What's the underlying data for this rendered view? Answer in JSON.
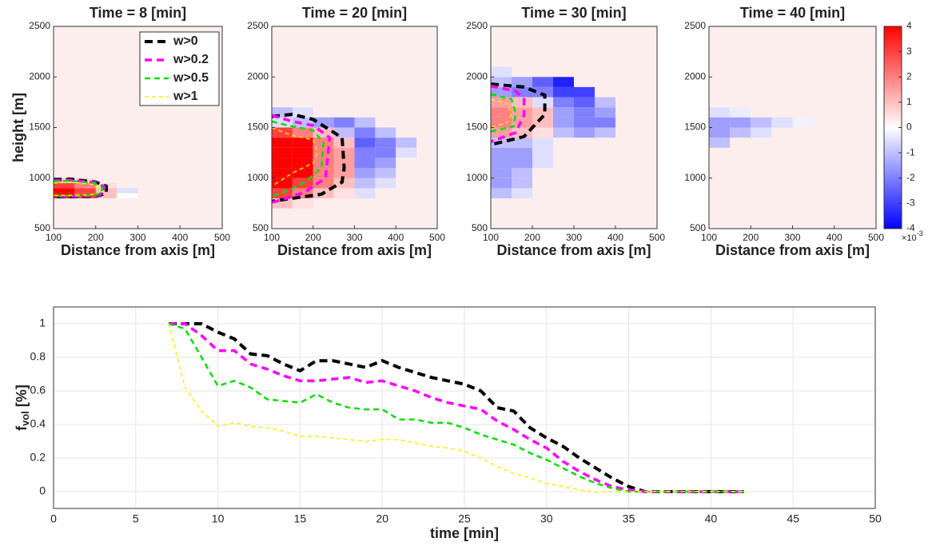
{
  "chart_data": [
    {
      "type": "heatmap",
      "title": "Time = 8 [min]",
      "xlabel": "Distance from axis [m]",
      "ylabel": "height [m]",
      "xlim": [
        100,
        500
      ],
      "xticks": [
        100,
        200,
        300,
        400,
        500
      ],
      "ylim": [
        500,
        2500
      ],
      "yticks": [
        500,
        1000,
        1500,
        2000,
        2500
      ],
      "legend": "upper right",
      "series": [
        {
          "name": "w>0",
          "color": "#000000"
        },
        {
          "name": "w>0.2",
          "color": "#ff00ff"
        },
        {
          "name": "w>0.5",
          "color": "#00e000"
        },
        {
          "name": "w>1",
          "color": "#ffee00"
        }
      ],
      "x_bins": [
        100,
        150,
        200,
        250,
        300
      ],
      "y_bins": [
        800,
        850,
        900,
        950,
        1000
      ],
      "z": [
        [
          4,
          3,
          1,
          0
        ],
        [
          4,
          3,
          1,
          -0.5
        ],
        [
          3,
          2,
          0.5,
          null
        ],
        [
          1,
          0.5,
          null,
          null
        ]
      ],
      "contours": [
        {
          "x": [
            100,
            140,
            200,
            225,
            225,
            200,
            140,
            100
          ],
          "y": [
            985,
            990,
            960,
            920,
            850,
            820,
            815,
            815
          ]
        },
        {
          "x": [
            100,
            140,
            200,
            220,
            220,
            200,
            140,
            100
          ],
          "y": [
            975,
            980,
            955,
            915,
            855,
            825,
            820,
            820
          ]
        },
        {
          "x": [
            100,
            140,
            195,
            215,
            215,
            195,
            140,
            100
          ],
          "y": [
            965,
            975,
            950,
            910,
            860,
            830,
            825,
            825
          ]
        },
        {
          "x": [
            100,
            140,
            190,
            210,
            210,
            190,
            140,
            100
          ],
          "y": [
            950,
            960,
            940,
            900,
            865,
            835,
            830,
            830
          ]
        }
      ]
    },
    {
      "type": "heatmap",
      "title": "Time = 20 [min]",
      "xlabel": "Distance from axis [m]",
      "xlim": [
        100,
        500
      ],
      "xticks": [
        100,
        200,
        300,
        400,
        500
      ],
      "ylim": [
        500,
        2500
      ],
      "yticks": [
        500,
        1000,
        1500,
        2000,
        2500
      ],
      "x_bins": [
        100,
        150,
        200,
        250,
        300,
        350,
        400,
        450
      ],
      "y_bins": [
        700,
        800,
        900,
        1000,
        1100,
        1200,
        1300,
        1400,
        1500,
        1600,
        1700
      ],
      "z": [
        [
          1,
          0.5,
          0.3,
          null,
          null,
          null,
          null
        ],
        [
          3,
          2,
          1,
          0.5,
          -0.5,
          null,
          null
        ],
        [
          4,
          3,
          2,
          1,
          -1,
          -0.5,
          null
        ],
        [
          4,
          4,
          2,
          1.5,
          -1.5,
          -1,
          null
        ],
        [
          4,
          4,
          2,
          1.5,
          -2,
          -1.5,
          null
        ],
        [
          4,
          4,
          2,
          1.5,
          -2,
          -2,
          -0.5
        ],
        [
          4,
          4,
          2,
          1,
          -2.5,
          -2,
          -1
        ],
        [
          3,
          2,
          1,
          -1,
          -2,
          -1,
          null
        ],
        [
          -0.5,
          -1,
          -1.5,
          -2,
          -1,
          null,
          null
        ],
        [
          -1,
          -0.5,
          null,
          null,
          null,
          null,
          null
        ]
      ],
      "contours": [
        {
          "x": [
            100,
            150,
            200,
            270,
            275,
            270,
            220,
            150,
            100
          ],
          "y": [
            1610,
            1630,
            1580,
            1400,
            1100,
            960,
            840,
            800,
            770
          ]
        },
        {
          "x": [
            100,
            150,
            200,
            240,
            230,
            180,
            120,
            100
          ],
          "y": [
            1620,
            1560,
            1520,
            1400,
            1000,
            860,
            780,
            760
          ]
        },
        {
          "x": [
            100,
            140,
            200,
            225,
            220,
            180,
            130,
            100
          ],
          "y": [
            1560,
            1520,
            1470,
            1350,
            1100,
            960,
            860,
            820
          ]
        },
        {
          "x": [
            100,
            150,
            200,
            210,
            200,
            150,
            100
          ],
          "y": [
            1500,
            1420,
            1380,
            1250,
            1150,
            1050,
            920
          ]
        }
      ]
    },
    {
      "type": "heatmap",
      "title": "Time = 30 [min]",
      "xlabel": "Distance from axis [m]",
      "xlim": [
        100,
        500
      ],
      "xticks": [
        100,
        200,
        300,
        400,
        500
      ],
      "ylim": [
        500,
        2500
      ],
      "yticks": [
        500,
        1000,
        1500,
        2000,
        2500
      ],
      "x_bins": [
        100,
        150,
        200,
        250,
        300,
        350,
        400
      ],
      "y_bins": [
        800,
        900,
        1000,
        1100,
        1200,
        1300,
        1400,
        1500,
        1600,
        1700,
        1800,
        1900,
        2000,
        2100
      ],
      "z": [
        [
          -1,
          -0.5,
          null,
          null,
          null,
          null
        ],
        [
          -1.5,
          -1,
          null,
          null,
          null,
          null
        ],
        [
          -1.5,
          -1,
          null,
          null,
          null,
          null
        ],
        [
          -1.5,
          -1.5,
          -0.5,
          null,
          null,
          null
        ],
        [
          -1.5,
          -1.5,
          -0.5,
          null,
          null,
          null
        ],
        [
          -1,
          -1,
          -0.5,
          null,
          null,
          null
        ],
        [
          1.5,
          1,
          0.5,
          -1,
          -1.5,
          -1
        ],
        [
          2,
          1.5,
          1,
          -1.5,
          -2,
          -2
        ],
        [
          2,
          1.5,
          1,
          -1.5,
          -2,
          -1.5
        ],
        [
          1.5,
          1,
          -0.5,
          -2,
          -2.5,
          -1
        ],
        [
          -1.5,
          -2,
          -2,
          -3,
          -3,
          null
        ],
        [
          -1,
          -1.5,
          -2.5,
          -3.5,
          null,
          null
        ],
        [
          -0.5,
          null,
          null,
          null,
          null,
          null
        ]
      ],
      "contours": [
        {
          "x": [
            100,
            180,
            230,
            230,
            180,
            100
          ],
          "y": [
            1930,
            1900,
            1820,
            1630,
            1410,
            1330
          ]
        },
        {
          "x": [
            100,
            160,
            180,
            180,
            160,
            100
          ],
          "y": [
            1910,
            1860,
            1780,
            1620,
            1450,
            1360
          ]
        },
        {
          "x": [
            100,
            150,
            160,
            155,
            100
          ],
          "y": [
            1830,
            1780,
            1640,
            1510,
            1460
          ]
        },
        {
          "x": [
            100,
            140,
            150,
            140,
            100
          ],
          "y": [
            1780,
            1740,
            1640,
            1550,
            1500
          ]
        }
      ]
    },
    {
      "type": "heatmap",
      "title": "Time = 40 [min]",
      "xlabel": "Distance from axis [m]",
      "xlim": [
        100,
        500
      ],
      "xticks": [
        100,
        200,
        300,
        400,
        500
      ],
      "ylim": [
        500,
        2500
      ],
      "yticks": [
        500,
        1000,
        1500,
        2000,
        2500
      ],
      "x_bins": [
        100,
        150,
        200,
        250,
        300,
        350
      ],
      "y_bins": [
        1300,
        1400,
        1500,
        1600,
        1700
      ],
      "z": [
        [
          -1,
          null,
          null,
          null,
          null
        ],
        [
          -1.5,
          -1,
          -0.5,
          null,
          null
        ],
        [
          -1.5,
          -1.5,
          -1,
          -0.5,
          -0.2
        ],
        [
          -0.5,
          -0.3,
          null,
          null,
          null
        ]
      ],
      "colorbar": {
        "lim": [
          -4,
          4
        ],
        "ticks": [
          -4,
          -3,
          -2,
          -1,
          0,
          1,
          2,
          3,
          4
        ],
        "low_color": "#0000ff",
        "mid_color": "#ffffff",
        "high_color": "#ff0000",
        "multiplier": "×10",
        "exponent": "-3"
      }
    },
    {
      "type": "line",
      "xlabel": "time [min]",
      "ylabel": {
        "main": "f",
        "sub": "vol",
        "unit": "[%]"
      },
      "xlim": [
        0,
        50
      ],
      "xticks": [
        0,
        5,
        10,
        15,
        20,
        25,
        30,
        35,
        40,
        45,
        50
      ],
      "ylim": [
        -0.1,
        1.1
      ],
      "yticks": [
        0,
        0.2,
        0.4,
        0.6,
        0.8,
        1
      ],
      "grid": true,
      "x": [
        7,
        8,
        9,
        10,
        11,
        12,
        13,
        14,
        15,
        16,
        17,
        18,
        19,
        20,
        21,
        22,
        23,
        24,
        25,
        26,
        27,
        28,
        29,
        30,
        31,
        32,
        33,
        34,
        35,
        36,
        37,
        38,
        39,
        40,
        41,
        42
      ],
      "series": [
        {
          "color": "#000000",
          "values": [
            1,
            1,
            1,
            0.95,
            0.91,
            0.82,
            0.81,
            0.76,
            0.72,
            0.78,
            0.78,
            0.76,
            0.74,
            0.78,
            0.74,
            0.71,
            0.68,
            0.66,
            0.64,
            0.6,
            0.5,
            0.48,
            0.38,
            0.32,
            0.27,
            0.2,
            0.14,
            0.08,
            0.03,
            0,
            0,
            0,
            0,
            0,
            0,
            0
          ]
        },
        {
          "color": "#ff00ff",
          "values": [
            1,
            1,
            0.93,
            0.84,
            0.84,
            0.76,
            0.73,
            0.69,
            0.66,
            0.66,
            0.67,
            0.68,
            0.65,
            0.66,
            0.63,
            0.6,
            0.56,
            0.53,
            0.51,
            0.49,
            0.42,
            0.37,
            0.31,
            0.26,
            0.18,
            0.12,
            0.07,
            0.03,
            0.01,
            0,
            0,
            0,
            0,
            0,
            0,
            0
          ]
        },
        {
          "color": "#00e000",
          "values": [
            1,
            0.97,
            0.8,
            0.63,
            0.66,
            0.62,
            0.55,
            0.54,
            0.53,
            0.58,
            0.53,
            0.5,
            0.49,
            0.49,
            0.43,
            0.43,
            0.41,
            0.41,
            0.38,
            0.34,
            0.31,
            0.28,
            0.23,
            0.19,
            0.14,
            0.09,
            0.05,
            0.02,
            0,
            0,
            0,
            0,
            0,
            0,
            0,
            0
          ]
        },
        {
          "color": "#ffee00",
          "values": [
            1,
            0.62,
            0.48,
            0.39,
            0.41,
            0.39,
            0.38,
            0.36,
            0.33,
            0.33,
            0.32,
            0.31,
            0.3,
            0.31,
            0.31,
            0.29,
            0.27,
            0.26,
            0.24,
            0.2,
            0.15,
            0.11,
            0.08,
            0.05,
            0.03,
            0.01,
            0,
            0,
            0,
            0,
            0,
            0,
            0,
            0,
            0,
            0
          ]
        }
      ]
    }
  ]
}
